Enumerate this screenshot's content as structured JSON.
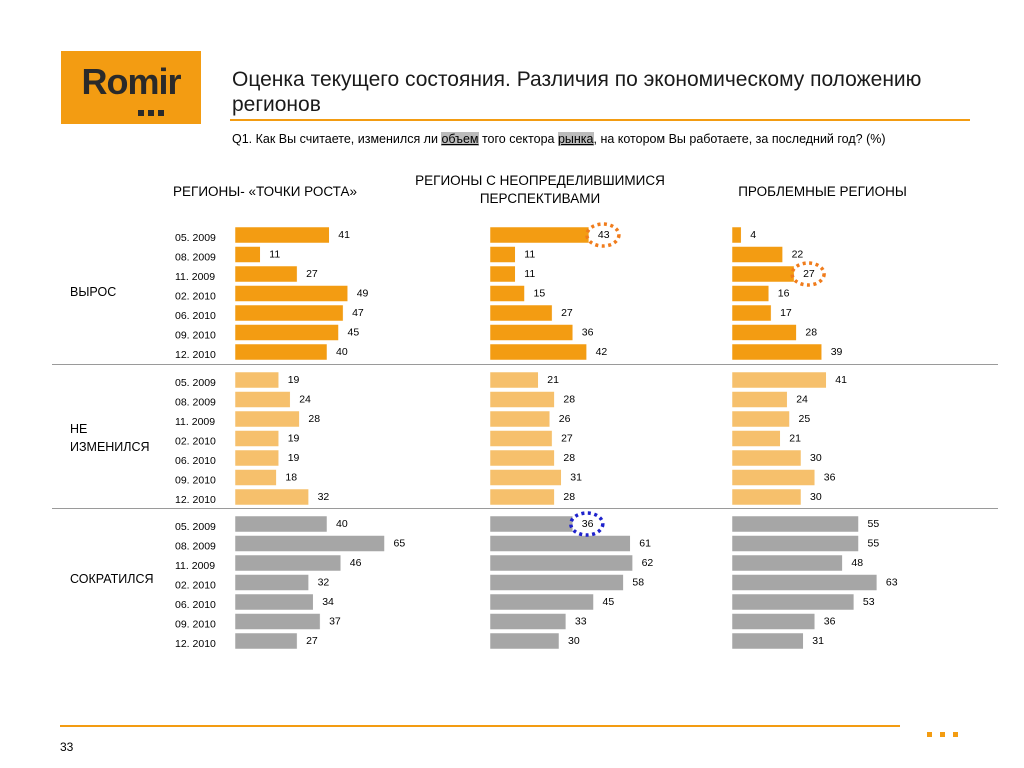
{
  "logo": {
    "text": "Romir"
  },
  "title": "Оценка текущего состояния. Различия по экономическому положению регионов",
  "question": {
    "prefix": "Q1. Как Вы считаете, изменился ли ",
    "hl1": "объем",
    "mid": " того сектора ",
    "hl2": "рынка",
    "suffix": ", на котором Вы работаете, за последний год? (%)"
  },
  "row_labels": [
    "ВЫРОС",
    "НЕ ИЗМЕНИЛСЯ",
    "СОКРАТИЛСЯ"
  ],
  "page_number": "33",
  "colors": {
    "accent": "#f39c12",
    "grew": "#f39c12",
    "unchanged": "#f6c06c",
    "declined": "#a6a6a6",
    "highlight_orange": "#f07c1c",
    "highlight_blue": "#1e22cc"
  },
  "chart_data": {
    "type": "bar",
    "orientation": "horizontal",
    "categories": [
      "05. 2009",
      "08. 2009",
      "11. 2009",
      "02. 2010",
      "06. 2010",
      "09. 2010",
      "12. 2010"
    ],
    "groups": [
      "РЕГИОНЫ- «ТОЧКИ РОСТА»",
      "РЕГИОНЫ   С НЕОПРЕДЕЛИВШИМИСЯ ПЕРСПЕКТИВАМИ",
      "ПРОБЛЕМНЫЕ РЕГИОНЫ"
    ],
    "series": [
      {
        "name": "ВЫРОС",
        "values": [
          [
            41,
            11,
            27,
            49,
            47,
            45,
            40
          ],
          [
            43,
            11,
            11,
            15,
            27,
            36,
            42
          ],
          [
            4,
            22,
            27,
            16,
            17,
            28,
            39
          ]
        ]
      },
      {
        "name": "НЕ ИЗМЕНИЛСЯ",
        "values": [
          [
            19,
            24,
            28,
            19,
            19,
            18,
            32
          ],
          [
            21,
            28,
            26,
            27,
            28,
            31,
            28
          ],
          [
            41,
            24,
            25,
            21,
            30,
            36,
            30
          ]
        ]
      },
      {
        "name": "СОКРАТИЛСЯ",
        "values": [
          [
            40,
            65,
            46,
            32,
            34,
            37,
            27
          ],
          [
            36,
            61,
            62,
            58,
            45,
            33,
            30
          ],
          [
            55,
            55,
            48,
            63,
            53,
            36,
            31
          ]
        ]
      }
    ],
    "highlights": [
      {
        "series": "ВЫРОС",
        "group": 1,
        "category": "05. 2009",
        "color": "orange"
      },
      {
        "series": "ВЫРОС",
        "group": 2,
        "category": "11. 2009",
        "color": "orange"
      },
      {
        "series": "СОКРАТИЛСЯ",
        "group": 1,
        "category": "05. 2009",
        "color": "blue"
      }
    ]
  }
}
